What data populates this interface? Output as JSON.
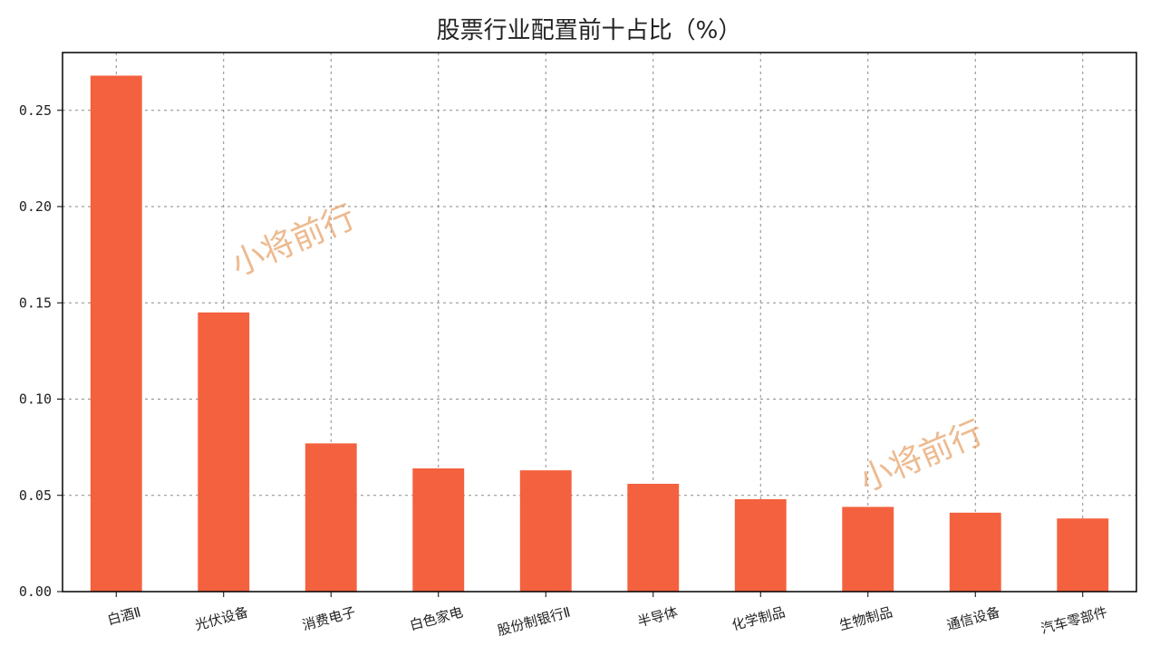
{
  "chart_data": {
    "type": "bar",
    "title": "股票行业配置前十占比（%）",
    "xlabel": "",
    "ylabel": "",
    "categories": [
      "白酒Ⅱ",
      "光伏设备",
      "消费电子",
      "白色家电",
      "股份制银行Ⅱ",
      "半导体",
      "化学制品",
      "生物制品",
      "通信设备",
      "汽车零部件"
    ],
    "values": [
      0.268,
      0.145,
      0.077,
      0.064,
      0.063,
      0.056,
      0.048,
      0.044,
      0.041,
      0.038
    ],
    "ylim": [
      0,
      0.28
    ],
    "yticks": [
      "0.00",
      "0.05",
      "0.10",
      "0.15",
      "0.20",
      "0.25"
    ],
    "ytick_values": [
      0,
      0.05,
      0.1,
      0.15,
      0.2,
      0.25
    ],
    "grid": true,
    "legend": "none",
    "bar_color": "#f4613e"
  },
  "watermarks": [
    "小将前行",
    "小将前行"
  ]
}
